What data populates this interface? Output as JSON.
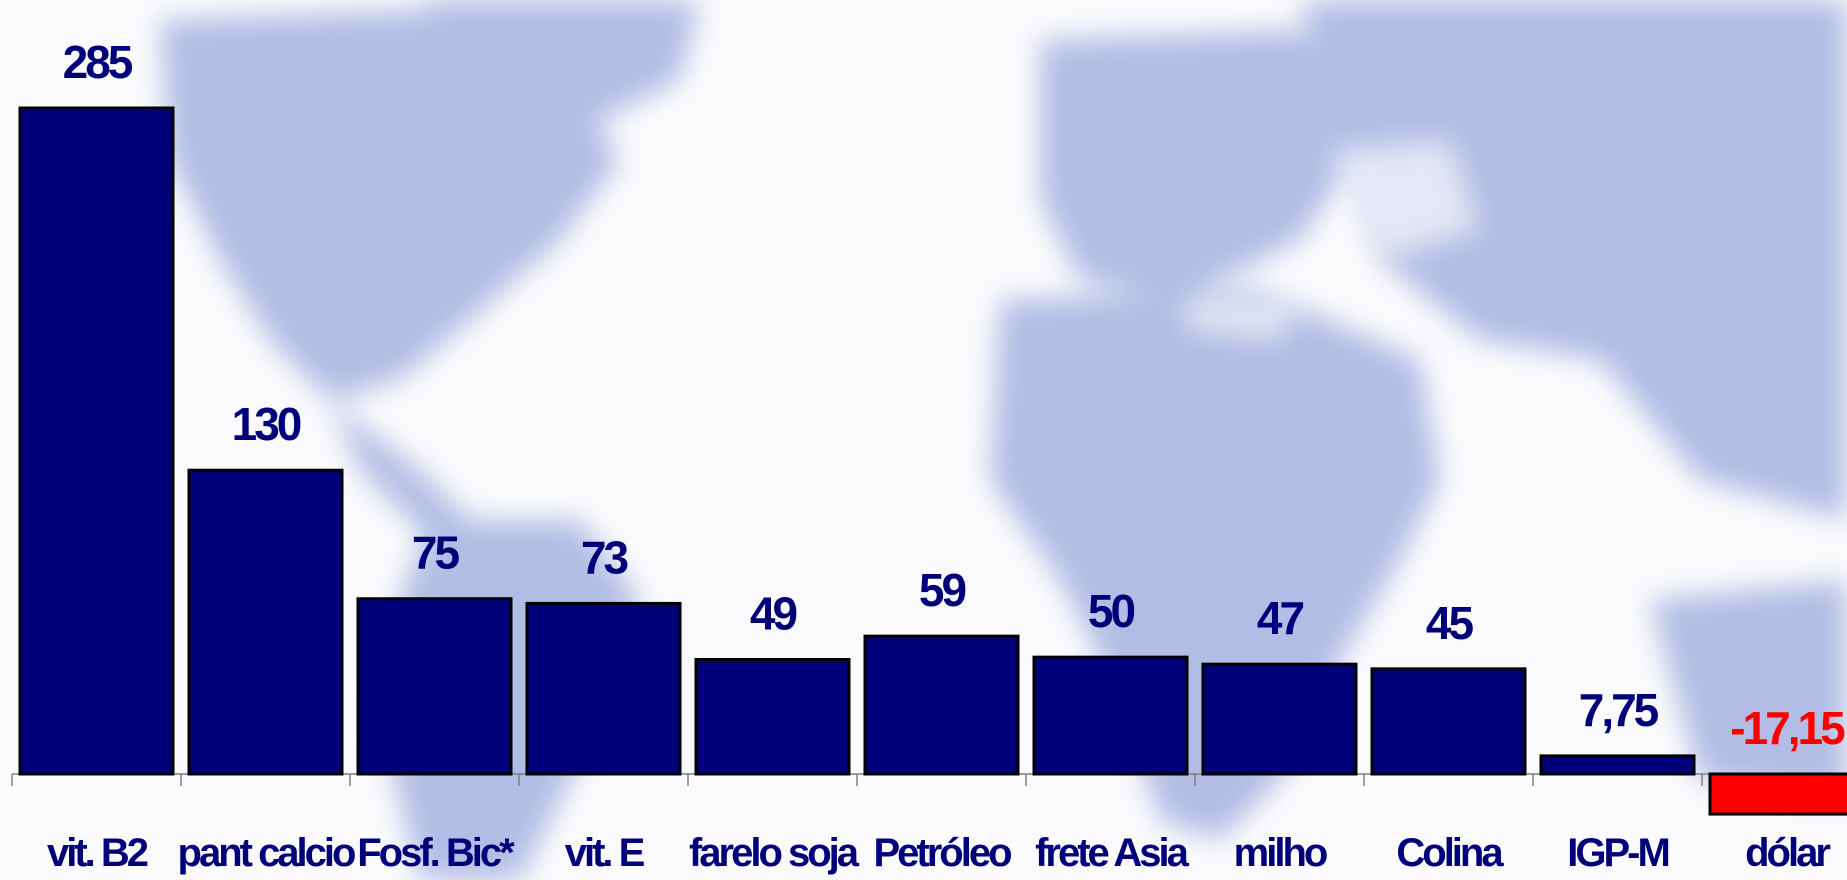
{
  "chart_data": {
    "type": "bar",
    "categories": [
      "vit. B2",
      "pant calcio",
      "Fosf. Bic*",
      "vit. E",
      "farelo soja",
      "Petróleo",
      "frete Asia",
      "milho",
      "Colina",
      "IGP-M",
      "dólar"
    ],
    "values": [
      285,
      130,
      75,
      73,
      49,
      59,
      50,
      47,
      45,
      7.75,
      -17.15
    ],
    "value_labels": [
      "285",
      "130",
      "75",
      "73",
      "49",
      "59",
      "50",
      "47",
      "45",
      "7,75",
      "-17,15"
    ],
    "colors": {
      "positive": "#00007a",
      "negative": "#ff0000",
      "label_positive": "#00007a",
      "label_negative": "#ff0000"
    },
    "title": "",
    "xlabel": "",
    "ylabel": "",
    "grid": false,
    "legend": "none"
  },
  "background": {
    "image": "world-map",
    "land_color": "#8f9fd6"
  }
}
